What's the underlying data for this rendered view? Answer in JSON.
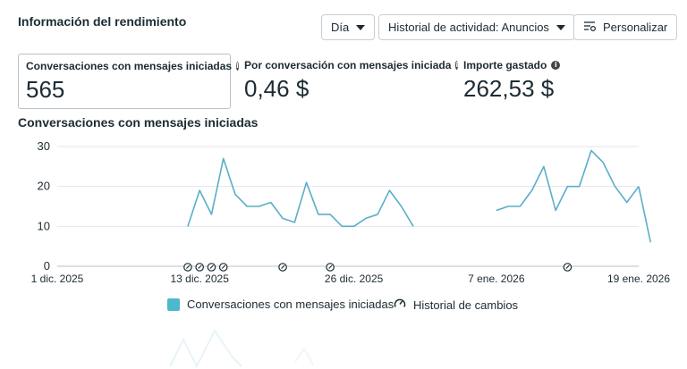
{
  "header": {
    "title": "Información del rendimiento",
    "period_label": "Día",
    "activity_label": "Historial de actividad: Anuncios",
    "customize_label": "Personalizar"
  },
  "metrics": [
    {
      "label": "Conversaciones con mensajes iniciadas",
      "value": "565"
    },
    {
      "label": "Por conversación con mensajes iniciada",
      "value": "0,46 $"
    },
    {
      "label": "Importe gastado",
      "value": "262,53 $"
    }
  ],
  "chart_title": "Conversaciones con mensajes iniciadas",
  "legend": {
    "series_label": "Conversaciones con mensajes iniciadas",
    "history_label": "Historial de cambios"
  },
  "colors": {
    "series": "#5aaec9",
    "legend_swatch": "#4db8cc",
    "grid": "#e4e6eb"
  },
  "chart_data": {
    "type": "line",
    "title": "Conversaciones con mensajes iniciadas",
    "x_tick_labels": [
      "1 dic. 2025",
      "13 dic. 2025",
      "26 dic. 2025",
      "7 ene. 2026",
      "19 ene. 2026"
    ],
    "y_ticks": [
      0,
      10,
      20,
      30
    ],
    "ylim": [
      0,
      30
    ],
    "x_range_days": [
      0,
      49
    ],
    "grid": true,
    "series": [
      {
        "name": "Conversaciones con mensajes iniciadas",
        "segments": [
          {
            "x": [
              11,
              12,
              13,
              14,
              15,
              16,
              17,
              18,
              19,
              20,
              21,
              22,
              23,
              24,
              25,
              26,
              27,
              28,
              29,
              30,
              31
            ],
            "y": [
              10,
              19,
              13,
              27,
              18,
              15,
              15,
              16,
              12,
              11,
              21,
              13,
              13,
              10,
              10,
              12,
              13,
              19,
              15,
              10,
              null
            ]
          },
          {
            "x": [
              37,
              38,
              39,
              40,
              41,
              42,
              43,
              44,
              45,
              46,
              47,
              48,
              49
            ],
            "y": [
              14,
              15,
              15,
              19,
              25,
              14,
              20,
              20,
              29,
              26,
              20,
              16,
              20
            ]
          },
          {
            "x": [
              49,
              50
            ],
            "y": [
              20,
              6
            ]
          }
        ]
      }
    ],
    "change_markers_x": [
      11,
      12,
      13,
      14,
      19,
      23,
      43
    ]
  }
}
